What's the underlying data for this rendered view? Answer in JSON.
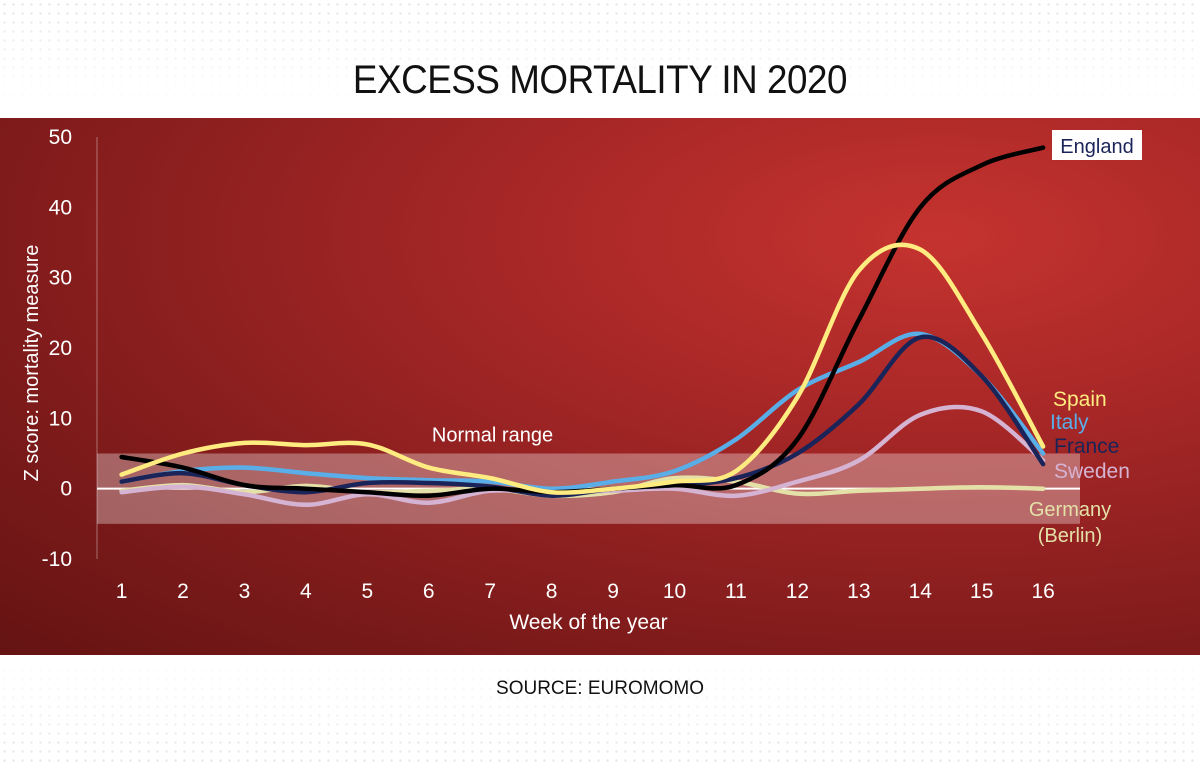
{
  "title": "EXCESS MORTALITY IN 2020",
  "source": "SOURCE: EUROMOMO",
  "colors": {
    "background_top": "#c5332f",
    "background_edge": "#651313",
    "normal_band": "#ffffff"
  },
  "chart_data": {
    "type": "line",
    "title": "EXCESS MORTALITY IN 2020",
    "xlabel": "Week of the year",
    "ylabel": "Z score: mortality measure",
    "x": [
      1,
      2,
      3,
      4,
      5,
      6,
      7,
      8,
      9,
      10,
      11,
      12,
      13,
      14,
      15,
      16
    ],
    "xlim": [
      0.6,
      16.6
    ],
    "ylim": [
      -10,
      50
    ],
    "yticks": [
      -10,
      0,
      10,
      20,
      30,
      40,
      50
    ],
    "normal_range": {
      "label": "Normal range",
      "ymin": -5,
      "ymax": 5
    },
    "series": [
      {
        "name": "Spain",
        "color": "#ffec80",
        "values": [
          2,
          5,
          6.5,
          6.2,
          6.3,
          3,
          1.5,
          -0.5,
          0,
          1,
          2.5,
          13,
          31,
          34,
          22,
          6
        ]
      },
      {
        "name": "Italy",
        "color": "#5aaee8",
        "values": [
          1,
          2.5,
          3,
          2.2,
          1.5,
          1.2,
          1,
          0,
          1,
          2.5,
          7,
          14,
          18,
          22,
          16,
          5
        ]
      },
      {
        "name": "France",
        "color": "#1b2458",
        "values": [
          1,
          2.2,
          0.5,
          -0.5,
          0.8,
          0.8,
          0.3,
          -1,
          0,
          0.5,
          1.5,
          5,
          12,
          21.5,
          16,
          3.5
        ]
      },
      {
        "name": "Sweden",
        "color": "#d5b3d2",
        "values": [
          -0.5,
          0.3,
          -0.8,
          -2.3,
          -0.8,
          -2,
          -0.3,
          -0.5,
          -0.3,
          0,
          -1,
          1,
          4,
          10.5,
          11,
          4
        ]
      },
      {
        "name": "Germany\n(Berlin)",
        "color": "#e4e1a8",
        "values": [
          -0.3,
          0.5,
          -0.5,
          0.4,
          -0.5,
          -0.3,
          0,
          -1,
          -0.5,
          1.5,
          1,
          -0.7,
          -0.3,
          0,
          0.2,
          0
        ]
      },
      {
        "name": "England",
        "color": "#000000",
        "values": [
          4.5,
          3,
          0.5,
          0,
          -0.5,
          -1,
          0,
          -0.5,
          0,
          0.5,
          0.5,
          7,
          24,
          40,
          46,
          48.5
        ]
      }
    ]
  }
}
